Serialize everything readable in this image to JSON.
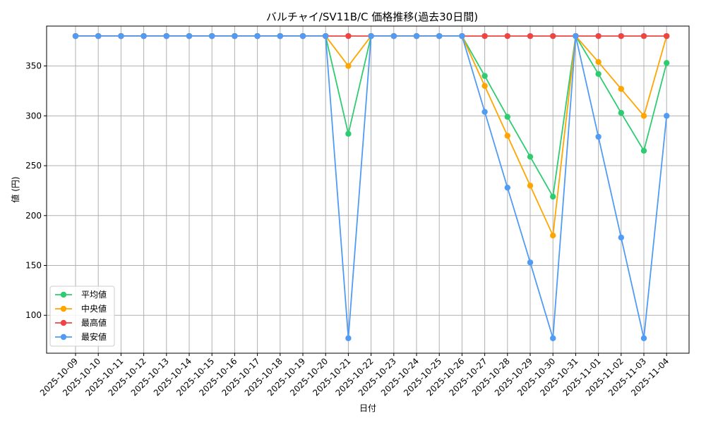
{
  "chart_data": {
    "type": "line",
    "title": "バルチャイ/SV11B/C 価格推移(過去30日間)",
    "xlabel": "日付",
    "ylabel": "値 (円)",
    "categories": [
      "2025-10-09",
      "2025-10-10",
      "2025-10-11",
      "2025-10-12",
      "2025-10-13",
      "2025-10-14",
      "2025-10-15",
      "2025-10-16",
      "2025-10-17",
      "2025-10-18",
      "2025-10-19",
      "2025-10-20",
      "2025-10-21",
      "2025-10-22",
      "2025-10-23",
      "2025-10-24",
      "2025-10-25",
      "2025-10-26",
      "2025-10-27",
      "2025-10-28",
      "2025-10-29",
      "2025-10-30",
      "2025-10-31",
      "2025-11-01",
      "2025-11-02",
      "2025-11-03",
      "2025-11-04"
    ],
    "ylim": [
      62,
      390
    ],
    "yticks": [
      100,
      150,
      200,
      250,
      300,
      350
    ],
    "grid": true,
    "legend_position": "bottom-left",
    "series": [
      {
        "name": "平均値",
        "color": "#2ecc71",
        "values": [
          380,
          380,
          380,
          380,
          380,
          380,
          380,
          380,
          380,
          380,
          380,
          380,
          282,
          380,
          380,
          380,
          380,
          380,
          340,
          299,
          259,
          219,
          380,
          342,
          303,
          265,
          353
        ]
      },
      {
        "name": "中央値",
        "color": "#ffa500",
        "values": [
          380,
          380,
          380,
          380,
          380,
          380,
          380,
          380,
          380,
          380,
          380,
          380,
          350,
          380,
          380,
          380,
          380,
          380,
          330,
          280,
          230,
          180,
          380,
          354,
          327,
          300,
          380
        ]
      },
      {
        "name": "最高値",
        "color": "#ef4444",
        "values": [
          380,
          380,
          380,
          380,
          380,
          380,
          380,
          380,
          380,
          380,
          380,
          380,
          380,
          380,
          380,
          380,
          380,
          380,
          380,
          380,
          380,
          380,
          380,
          380,
          380,
          380,
          380
        ]
      },
      {
        "name": "最安値",
        "color": "#4f9bf5",
        "values": [
          380,
          380,
          380,
          380,
          380,
          380,
          380,
          380,
          380,
          380,
          380,
          380,
          77,
          380,
          380,
          380,
          380,
          380,
          304,
          228,
          153,
          77,
          380,
          279,
          178,
          77,
          300
        ]
      }
    ]
  }
}
